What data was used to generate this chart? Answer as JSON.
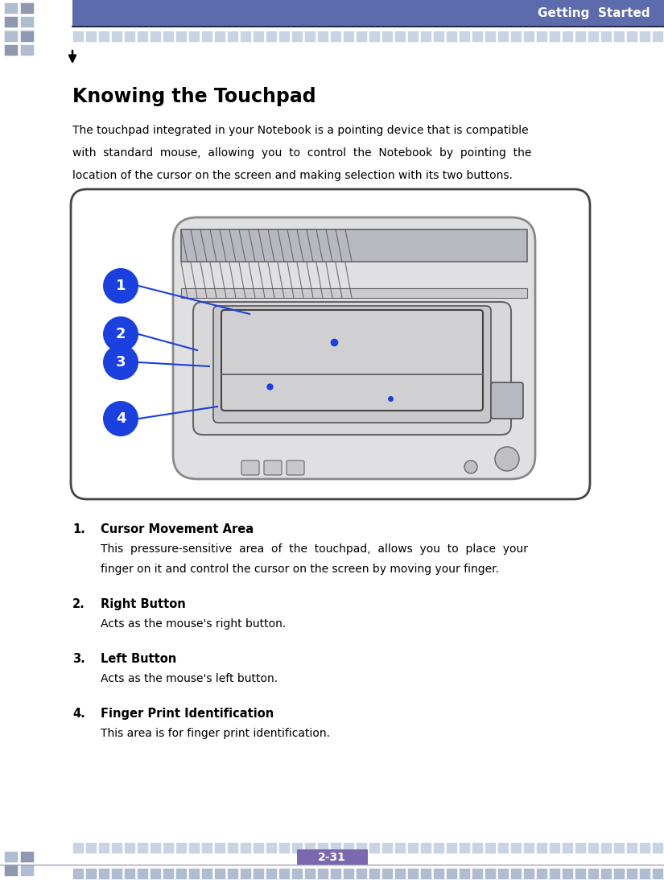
{
  "title": "Knowing the Touchpad",
  "header_text": "Getting  Started",
  "header_bg": "#5b6bab",
  "header_line_color": "#2c3060",
  "tile_color_light": "#c8d4e4",
  "tile_color_mid": "#b0bcd0",
  "tile_color_dark": "#9098b0",
  "footer_page": "2-31",
  "footer_page_bg": "#7b68ae",
  "footer_line_color": "#a0a0c0",
  "body_text_1": "The touchpad integrated in your Notebook is a pointing device that is compatible",
  "body_text_2": "with  standard  mouse,  allowing  you  to  control  the  Notebook  by  pointing  the",
  "body_text_3": "location of the cursor on the screen and making selection with its two buttons.",
  "items": [
    {
      "num": "1",
      "label": "Cursor Movement Area",
      "desc1": "This  pressure-sensitive  area  of  the  touchpad,  allows  you  to  place  your",
      "desc2": "finger on it and control the cursor on the screen by moving your finger."
    },
    {
      "num": "2",
      "label": "Right Button",
      "desc1": "Acts as the mouse's right button.",
      "desc2": ""
    },
    {
      "num": "3",
      "label": "Left Button",
      "desc1": "Acts as the mouse's left button.",
      "desc2": ""
    },
    {
      "num": "4",
      "label": "Finger Print Identification",
      "desc1": "This area is for finger print identification.",
      "desc2": ""
    }
  ],
  "circle_color": "#1a40e0",
  "box_bg": "#ffffff",
  "box_border": "#555555",
  "bg_color": "#ffffff",
  "laptop_bg": "#e8e8ea",
  "laptop_border": "#888888",
  "screen_bg": "#d8d8d8",
  "screen_inner": "#c8ccd0",
  "touchpad_bg": "#cccccc",
  "fp_bg": "#c0c0c8"
}
